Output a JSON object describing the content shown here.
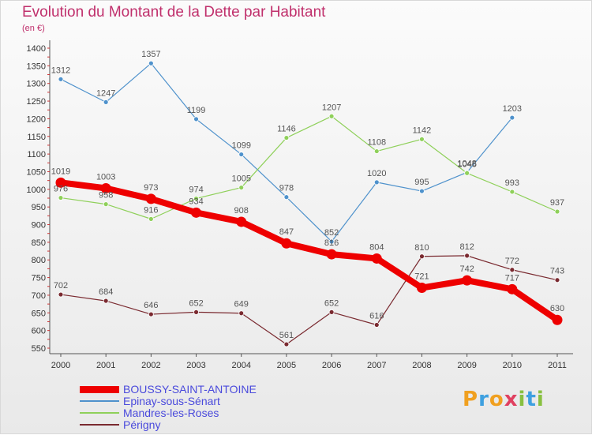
{
  "title": "Evolution du Montant de la Dette par Habitant",
  "subtitle": "(en €)",
  "logo": {
    "text": "Proxiti",
    "letters": [
      "P",
      "r",
      "o",
      "x",
      "i",
      "t",
      "i"
    ],
    "letter_colors": [
      "#f0a020",
      "#3ea0e0",
      "#f0a020",
      "#e04060",
      "#88c040",
      "#3ea0e0",
      "#88c040"
    ]
  },
  "chart_data": {
    "type": "line",
    "title": "Evolution du Montant de la Dette par Habitant",
    "subtitle": "(en €)",
    "xlabel": "",
    "ylabel": "",
    "x": [
      "2000",
      "2001",
      "2002",
      "2003",
      "2004",
      "2005",
      "2006",
      "2007",
      "2008",
      "2009",
      "2010",
      "2011"
    ],
    "y_ticks": [
      550,
      600,
      650,
      700,
      750,
      800,
      850,
      900,
      950,
      1000,
      1050,
      1100,
      1150,
      1200,
      1250,
      1300,
      1350,
      1400
    ],
    "ylim": [
      550,
      1400
    ],
    "grid": false,
    "legend_position": "bottom-left",
    "series": [
      {
        "name": "BOUSSY-SAINT-ANTOINE",
        "color": "#ee0000",
        "emphasis": true,
        "values": [
          1019,
          1003,
          973,
          934,
          908,
          847,
          816,
          804,
          721,
          742,
          717,
          630
        ],
        "labels": [
          "1019",
          "1003",
          "973",
          "934",
          "908",
          "847",
          "816",
          "804",
          "721",
          "742",
          "717",
          "630"
        ]
      },
      {
        "name": "Epinay-sous-Sénart",
        "color": "#4f92cc",
        "emphasis": false,
        "values": [
          1312,
          1247,
          1357,
          1199,
          1099,
          978,
          852,
          1020,
          995,
          1048,
          1203,
          null
        ],
        "labels": [
          "1312",
          "1247",
          "1357",
          "1199",
          "1099",
          "978",
          "852",
          "1020",
          "995",
          "1048",
          "1203",
          ""
        ]
      },
      {
        "name": "Mandres-les-Roses",
        "color": "#8fd05a",
        "emphasis": false,
        "values": [
          976,
          958,
          916,
          974,
          1005,
          1146,
          1207,
          1108,
          1142,
          1046,
          993,
          937
        ],
        "labels": [
          "976",
          "958",
          "916",
          "974",
          "1005",
          "1146",
          "1207",
          "1108",
          "1142",
          "1046",
          "993",
          "937"
        ]
      },
      {
        "name": "Périgny",
        "color": "#7a2a30",
        "emphasis": false,
        "values": [
          702,
          684,
          646,
          652,
          649,
          561,
          652,
          616,
          810,
          812,
          772,
          743
        ],
        "labels": [
          "702",
          "684",
          "646",
          "652",
          "649",
          "561",
          "652",
          "616",
          "810",
          "812",
          "772",
          "743"
        ]
      }
    ]
  }
}
